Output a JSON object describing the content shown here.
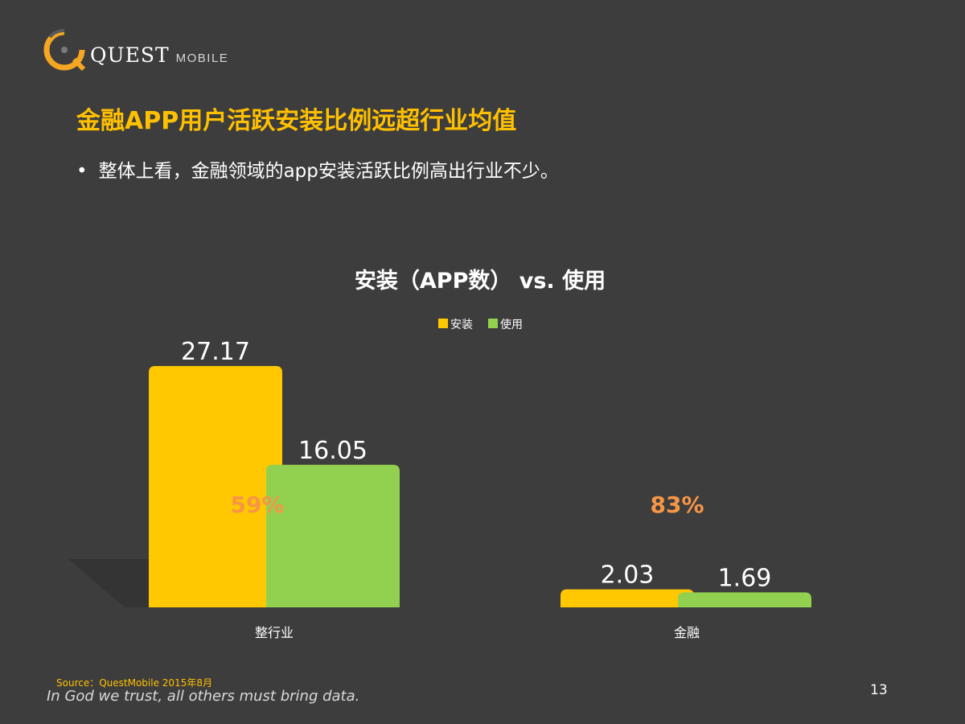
{
  "brand": {
    "logo_main": "QUEST",
    "logo_sub": "MOBILE",
    "accent": "#ffc000"
  },
  "header": {
    "title": "金融APP用户活跃安装比例远超行业均值",
    "bullet": "整体上看，金融领域的app安装活跃比例高出行业不少。"
  },
  "chart_data": {
    "type": "bar",
    "title": "安装（APP数） vs. 使用",
    "categories": [
      "整行业",
      "金融"
    ],
    "series": [
      {
        "name": "安装",
        "values": [
          27.17,
          2.03
        ],
        "value_labels": [
          "27.17",
          "2.03"
        ],
        "color": "#ffc800"
      },
      {
        "name": "使用",
        "values": [
          16.05,
          1.69
        ],
        "value_labels": [
          "16.05",
          "1.69"
        ],
        "color": "#92d050"
      }
    ],
    "ratio_labels": [
      "59%",
      "83%"
    ],
    "ratio_color": "#f79646",
    "xlabel": "",
    "ylabel": "",
    "ylim": [
      0,
      27.17
    ],
    "legend_position": "top-center",
    "grid": false
  },
  "footer": {
    "source": "Source：QuestMobile   2015年8月",
    "slogan": "In God we trust, all others must bring data.",
    "page_number": "13"
  }
}
